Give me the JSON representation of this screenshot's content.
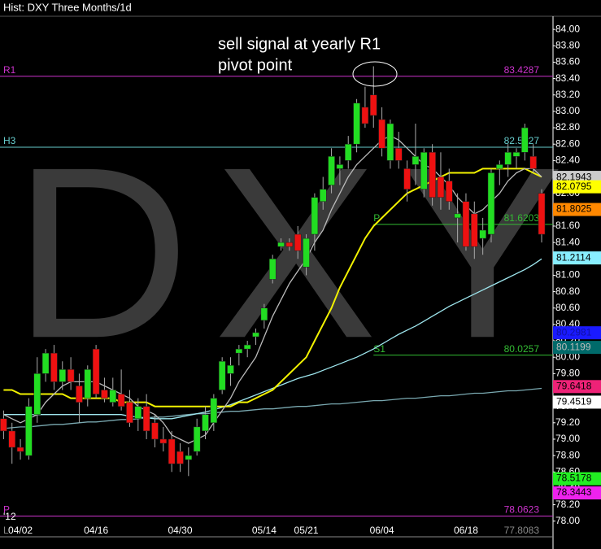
{
  "chart_data": {
    "type": "candlestick",
    "title": "Hist: DXY Three Months/1d",
    "watermark": "DXY",
    "annotation": [
      "sell signal at yearly R1",
      "pivot point"
    ],
    "year_label": "'12",
    "categories": [
      null,
      null,
      "04/02",
      null,
      null,
      null,
      null,
      null,
      null,
      null,
      null,
      "04/16",
      null,
      null,
      null,
      null,
      null,
      null,
      null,
      null,
      null,
      "04/30",
      null,
      null,
      null,
      null,
      null,
      null,
      null,
      null,
      null,
      "05/14",
      null,
      null,
      null,
      null,
      "05/21",
      null,
      null,
      null,
      null,
      null,
      null,
      null,
      null,
      "06/04",
      null,
      null,
      null,
      null,
      null,
      null,
      null,
      null,
      null,
      "06/18",
      null,
      null,
      null,
      null,
      null,
      null,
      null,
      null,
      null
    ],
    "open": [
      79.25,
      79.1,
      78.9,
      78.8,
      79.3,
      79.8,
      80.05,
      79.7,
      79.85,
      79.65,
      79.5,
      80.1,
      79.6,
      79.45,
      79.55,
      79.45,
      79.25,
      79.4,
      79.2,
      79.0,
      79.0,
      78.85,
      78.75,
      78.85,
      79.1,
      79.2,
      79.6,
      79.8,
      80.05,
      80.1,
      80.25,
      80.45,
      80.95,
      81.35,
      81.4,
      81.5,
      81.1,
      81.5,
      81.9,
      82.1,
      82.3,
      82.4,
      82.6,
      83.05,
      83.2,
      82.9,
      82.4,
      82.55,
      82.3,
      82.35,
      82.05,
      82.5,
      82.2,
      82.15,
      81.7,
      81.9,
      81.75,
      81.45,
      81.5,
      82.3,
      82.35,
      82.45,
      82.5,
      82.45,
      82.0
    ],
    "high": [
      79.35,
      79.2,
      79.0,
      79.5,
      80.0,
      80.1,
      80.15,
      79.95,
      80.0,
      79.8,
      79.9,
      80.15,
      79.75,
      79.75,
      79.85,
      79.6,
      79.5,
      79.55,
      79.3,
      79.15,
      79.1,
      78.95,
      78.9,
      79.25,
      79.4,
      79.55,
      80.0,
      80.0,
      80.15,
      80.2,
      80.35,
      80.65,
      81.25,
      81.45,
      81.45,
      81.6,
      81.5,
      82.0,
      82.2,
      82.55,
      82.45,
      82.7,
      83.15,
      83.3,
      83.55,
      83.05,
      82.9,
      82.75,
      82.4,
      82.85,
      82.55,
      82.6,
      82.5,
      82.3,
      82.0,
      82.0,
      81.9,
      81.7,
      82.3,
      82.4,
      82.6,
      82.55,
      82.85,
      82.6,
      82.05
    ],
    "low": [
      79.0,
      78.7,
      78.75,
      78.75,
      79.2,
      79.7,
      79.6,
      79.6,
      79.6,
      79.2,
      79.4,
      79.5,
      79.45,
      79.4,
      79.35,
      79.15,
      79.1,
      79.0,
      78.9,
      78.85,
      78.6,
      78.6,
      78.55,
      78.8,
      79.0,
      79.1,
      79.55,
      79.65,
      79.9,
      80.0,
      80.15,
      80.35,
      80.9,
      81.3,
      81.3,
      81.2,
      81.0,
      81.3,
      81.8,
      82.0,
      82.1,
      82.3,
      82.5,
      82.8,
      82.8,
      82.45,
      82.3,
      82.3,
      81.9,
      82.1,
      81.95,
      81.85,
      81.8,
      81.8,
      81.4,
      81.3,
      81.2,
      81.25,
      81.4,
      82.1,
      82.2,
      82.3,
      82.4,
      82.25,
      81.4
    ],
    "close": [
      79.1,
      78.9,
      78.85,
      79.4,
      79.8,
      80.05,
      79.7,
      79.85,
      79.7,
      79.45,
      79.85,
      79.55,
      79.5,
      79.6,
      79.4,
      79.2,
      79.4,
      79.1,
      79.0,
      78.95,
      78.7,
      78.7,
      78.8,
      79.15,
      79.3,
      79.5,
      79.95,
      79.9,
      80.1,
      80.15,
      80.3,
      80.6,
      81.2,
      81.4,
      81.35,
      81.3,
      81.45,
      81.95,
      82.05,
      82.45,
      82.35,
      82.6,
      83.1,
      82.85,
      82.95,
      82.55,
      82.85,
      82.4,
      82.05,
      82.45,
      82.5,
      81.95,
      81.95,
      81.9,
      81.75,
      81.35,
      81.35,
      81.55,
      82.25,
      82.35,
      82.5,
      82.5,
      82.8,
      82.3,
      81.5
    ],
    "up_color": "#22dd22",
    "down_color": "#ee1111",
    "moving_averages": [
      {
        "color": "#79a8b0",
        "values": [
          79.13,
          79.14,
          79.15,
          79.15,
          79.16,
          79.17,
          79.18,
          79.18,
          79.19,
          79.2,
          79.21,
          79.21,
          79.22,
          79.23,
          79.24,
          79.24,
          79.25,
          79.26,
          79.27,
          79.27,
          79.28,
          79.29,
          79.3,
          79.31,
          79.31,
          79.32,
          79.33,
          79.34,
          79.34,
          79.35,
          79.36,
          79.37,
          79.37,
          79.38,
          79.39,
          79.4,
          79.4,
          79.41,
          79.42,
          79.43,
          79.43,
          79.44,
          79.45,
          79.46,
          79.47,
          79.47,
          79.48,
          79.49,
          79.5,
          79.5,
          79.51,
          79.52,
          79.53,
          79.53,
          79.54,
          79.55,
          79.56,
          79.56,
          79.57,
          79.58,
          79.59,
          79.59,
          79.6,
          79.61,
          79.62
        ]
      },
      {
        "color": "#9ee6ee",
        "values": [
          79.3,
          79.3,
          79.3,
          79.3,
          79.3,
          79.3,
          79.3,
          79.3,
          79.3,
          79.3,
          79.3,
          79.3,
          79.3,
          79.3,
          79.3,
          79.28,
          79.27,
          79.26,
          79.25,
          79.25,
          79.25,
          79.27,
          79.29,
          79.31,
          79.33,
          79.36,
          79.39,
          79.42,
          79.46,
          79.5,
          79.54,
          79.58,
          79.62,
          79.66,
          79.7,
          79.74,
          79.77,
          79.8,
          79.84,
          79.88,
          79.92,
          79.96,
          80.0,
          80.05,
          80.1,
          80.16,
          80.22,
          80.28,
          80.33,
          80.38,
          80.44,
          80.5,
          80.56,
          80.62,
          80.67,
          80.72,
          80.77,
          80.82,
          80.87,
          80.92,
          80.97,
          81.02,
          81.07,
          81.13,
          81.2
        ]
      },
      {
        "color": "#f2f200",
        "values": [
          79.6,
          79.6,
          79.55,
          79.55,
          79.55,
          79.55,
          79.55,
          79.55,
          79.5,
          79.5,
          79.5,
          79.5,
          79.5,
          79.5,
          79.45,
          79.45,
          79.45,
          79.45,
          79.4,
          79.4,
          79.4,
          79.4,
          79.4,
          79.4,
          79.4,
          79.4,
          79.4,
          79.4,
          79.45,
          79.45,
          79.5,
          79.55,
          79.6,
          79.7,
          79.8,
          79.9,
          80.0,
          80.2,
          80.4,
          80.6,
          80.85,
          81.05,
          81.25,
          81.45,
          81.6,
          81.7,
          81.8,
          81.9,
          82.0,
          82.05,
          82.1,
          82.15,
          82.2,
          82.25,
          82.25,
          82.25,
          82.25,
          82.3,
          82.3,
          82.3,
          82.3,
          82.3,
          82.3,
          82.25,
          82.2
        ]
      },
      {
        "color": "#bbbbbb",
        "values": [
          79.3,
          79.25,
          79.2,
          79.25,
          79.3,
          79.45,
          79.55,
          79.65,
          79.7,
          79.7,
          79.7,
          79.7,
          79.65,
          79.6,
          79.55,
          79.5,
          79.4,
          79.35,
          79.3,
          79.2,
          79.05,
          79.0,
          78.95,
          79.0,
          79.05,
          79.2,
          79.35,
          79.5,
          79.7,
          79.85,
          80.0,
          80.25,
          80.5,
          80.7,
          80.9,
          81.05,
          81.2,
          81.4,
          81.55,
          81.8,
          82.0,
          82.2,
          82.35,
          82.45,
          82.55,
          82.65,
          82.7,
          82.65,
          82.55,
          82.45,
          82.35,
          82.3,
          82.2,
          82.1,
          81.95,
          81.85,
          81.75,
          81.8,
          81.9,
          82.0,
          82.15,
          82.25,
          82.3,
          82.3,
          82.2
        ]
      }
    ],
    "levels": [
      {
        "name": "R1",
        "value": 83.4287,
        "color": "#cc33cc"
      },
      {
        "name": "H3",
        "value": 82.5627,
        "color": "#66cccc"
      },
      {
        "name": "P",
        "value": 78.0623,
        "color": "#cc33cc"
      },
      {
        "name": "L",
        "value": 77.8083,
        "color": "#888888"
      }
    ],
    "recent_levels": [
      {
        "name": "P",
        "value": 81.6203,
        "color": "#33bb33"
      },
      {
        "name": "S1",
        "value": 80.0257,
        "color": "#33bb33"
      }
    ],
    "markers": [
      {
        "value": 82.1943,
        "color": "#cccccc",
        "text_color": "#000000"
      },
      {
        "value": 82.0795,
        "color": "#ffff00",
        "text_color": "#000000"
      },
      {
        "value": 81.8025,
        "color": "#ff8800",
        "text_color": "#000000"
      },
      {
        "value": 81.2114,
        "color": "#88eeff",
        "text_color": "#000000"
      },
      {
        "value": 80.2981,
        "color": "#1a1aff",
        "text_color": "#1010a0"
      },
      {
        "value": 80.1199,
        "color": "#006a6a",
        "text_color": "#bbbbbb"
      },
      {
        "value": 79.6418,
        "color": "#ee2277",
        "text_color": "#000000"
      },
      {
        "value": 79.4519,
        "color": "#ffffff",
        "text_color": "#000000"
      },
      {
        "value": 78.5178,
        "color": "#22ee22",
        "text_color": "#000000"
      },
      {
        "value": 78.3443,
        "color": "#ee22ee",
        "text_color": "#000000"
      }
    ],
    "ylim": [
      77.66,
      84.16
    ],
    "yticks": [
      {
        "value": 78,
        "label": "78.00"
      },
      {
        "value": 78.2,
        "label": "78.20"
      },
      {
        "value": 78.4,
        "label": "78.40"
      },
      {
        "value": 78.6,
        "label": "78.60"
      },
      {
        "value": 78.8,
        "label": "78.80"
      },
      {
        "value": 79,
        "label": "79.00"
      },
      {
        "value": 79.2,
        "label": "79.20"
      },
      {
        "value": 79.4,
        "label": "79.40"
      },
      {
        "value": 79.6,
        "label": "79.60"
      },
      {
        "value": 79.8,
        "label": "79.80"
      },
      {
        "value": 80,
        "label": "80.00"
      },
      {
        "value": 80.2,
        "label": "80.20"
      },
      {
        "value": 80.4,
        "label": "80.40"
      },
      {
        "value": 80.6,
        "label": "80.60"
      },
      {
        "value": 80.8,
        "label": "80.80"
      },
      {
        "value": 81,
        "label": "81.00"
      },
      {
        "value": 81.2,
        "label": "81.20"
      },
      {
        "value": 81.4,
        "label": "81.40"
      },
      {
        "value": 81.6,
        "label": "81.60"
      },
      {
        "value": 81.8,
        "label": "81.80"
      },
      {
        "value": 82,
        "label": "82.00"
      },
      {
        "value": 82.2,
        "label": "82.20"
      },
      {
        "value": 82.4,
        "label": "82.40"
      },
      {
        "value": 82.6,
        "label": "82.60"
      },
      {
        "value": 82.8,
        "label": "82.80"
      },
      {
        "value": 83,
        "label": "83.00"
      },
      {
        "value": 83.2,
        "label": "83.20"
      },
      {
        "value": 83.4,
        "label": "83.40"
      },
      {
        "value": 83.6,
        "label": "83.60"
      },
      {
        "value": 83.8,
        "label": "83.80"
      },
      {
        "value": 84,
        "label": "84.00"
      }
    ]
  }
}
